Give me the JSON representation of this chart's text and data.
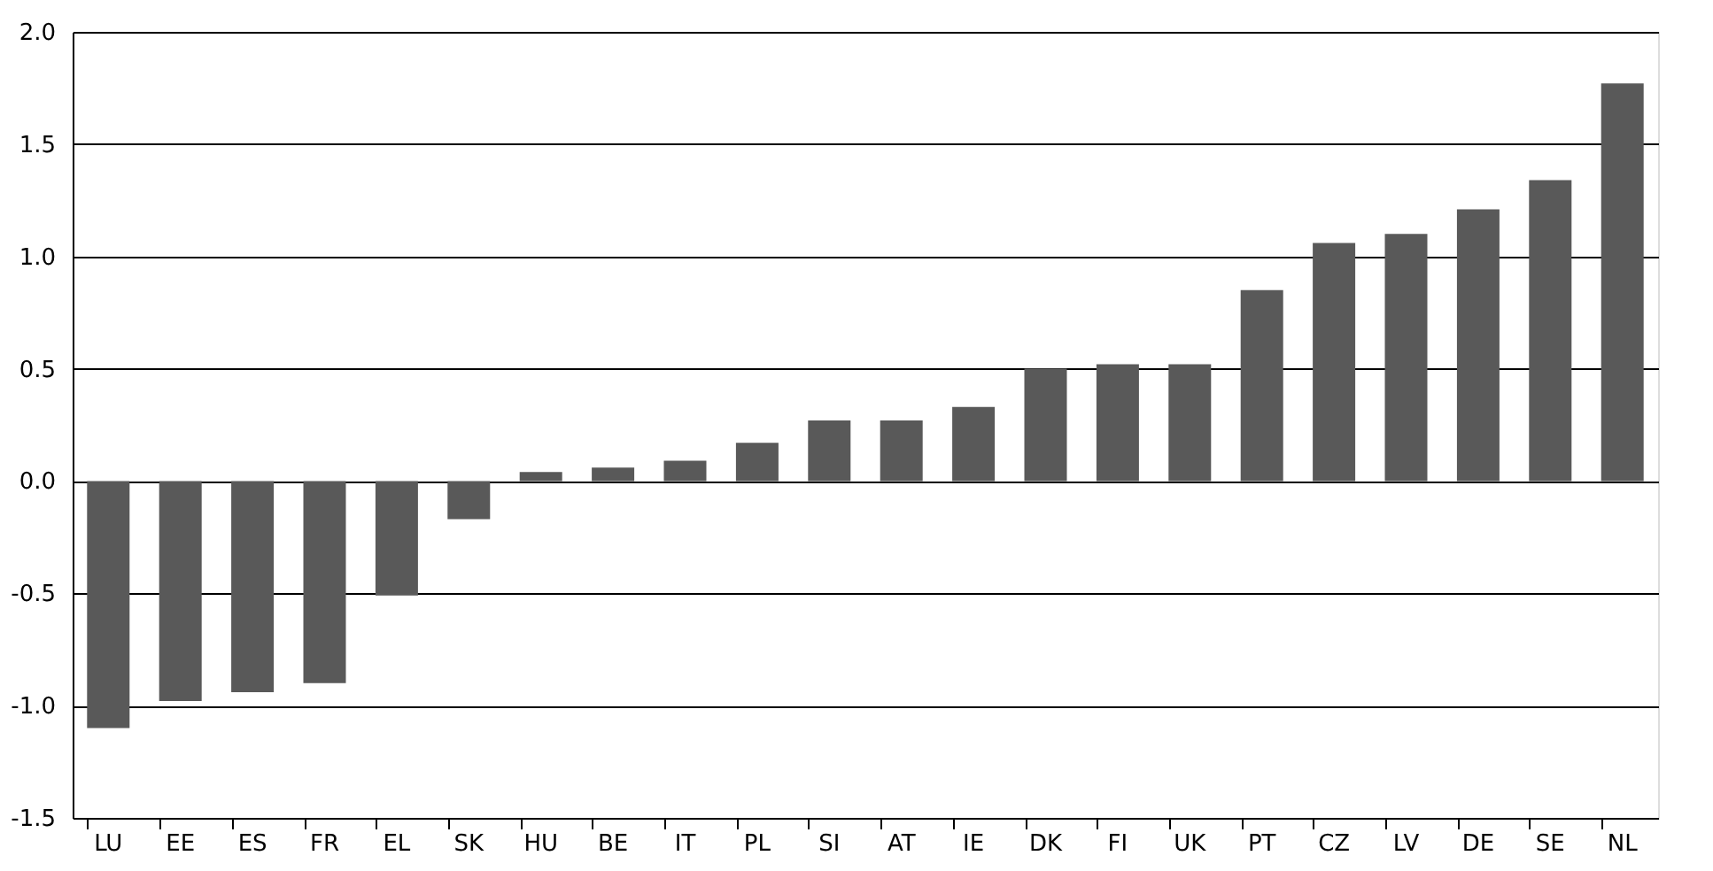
{
  "chart_data": {
    "type": "bar",
    "categories": [
      "LU",
      "EE",
      "ES",
      "FR",
      "EL",
      "SK",
      "HU",
      "BE",
      "IT",
      "PL",
      "SI",
      "AT",
      "IE",
      "DK",
      "FI",
      "UK",
      "PT",
      "CZ",
      "LV",
      "DE",
      "SE",
      "NL"
    ],
    "values": [
      -1.1,
      -0.98,
      -0.94,
      -0.9,
      -0.51,
      -0.17,
      0.04,
      0.06,
      0.09,
      0.17,
      0.27,
      0.27,
      0.33,
      0.5,
      0.52,
      0.52,
      0.85,
      1.06,
      1.1,
      1.21,
      1.34,
      1.77
    ],
    "color": "#595959",
    "ylim": [
      -1.5,
      2.0
    ],
    "yticks": [
      {
        "value": -1.5,
        "label": "-1.5"
      },
      {
        "value": -1.0,
        "label": "-1.0"
      },
      {
        "value": -0.5,
        "label": "-0.5"
      },
      {
        "value": 0,
        "label": "0.0"
      },
      {
        "value": 0.5,
        "label": "0.5"
      },
      {
        "value": 1.0,
        "label": "1.0"
      },
      {
        "value": 1.5,
        "label": "1.5"
      },
      {
        "value": 2.0,
        "label": "2.0"
      }
    ],
    "grid": "y"
  }
}
